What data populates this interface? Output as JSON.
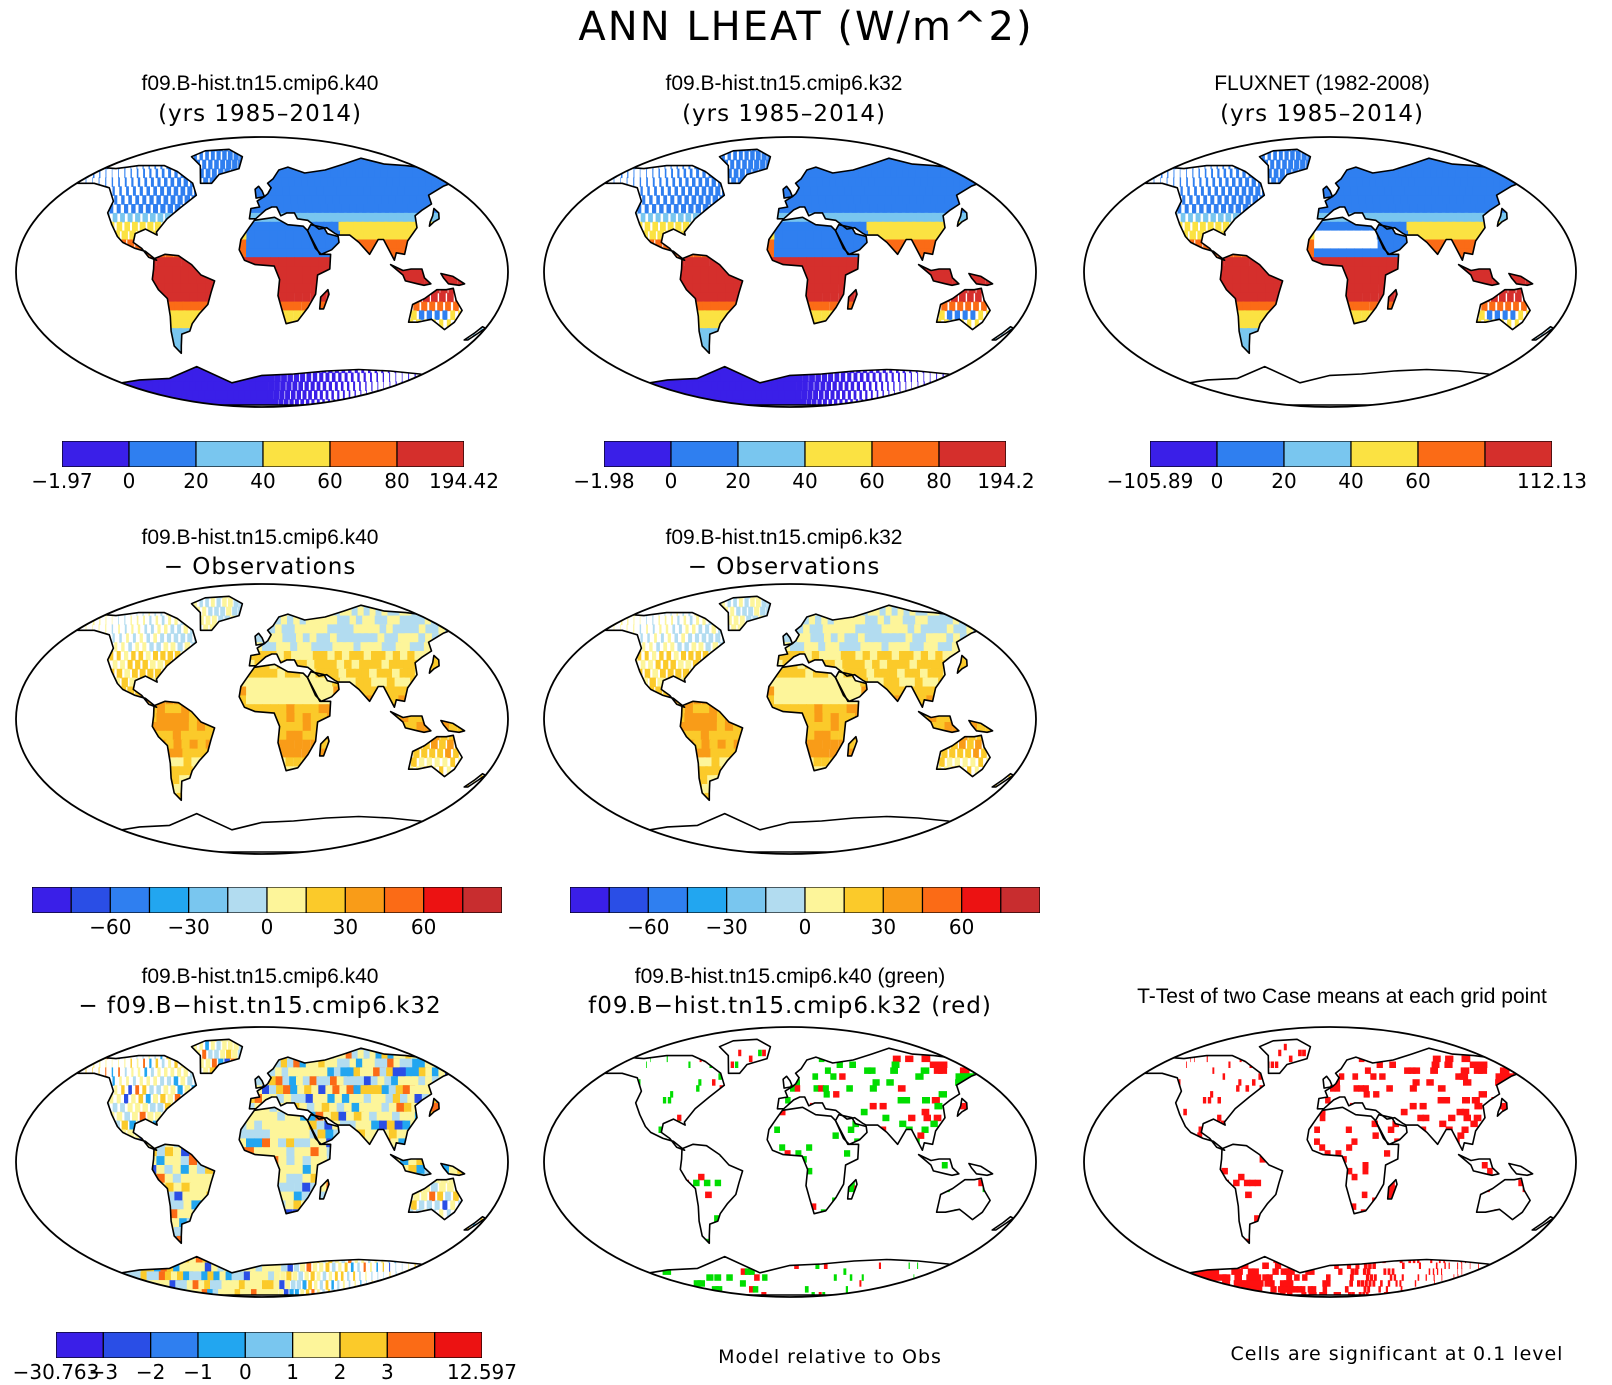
{
  "main_title": "ANN LHEAT (W/m^2)",
  "colors": {
    "abs": [
      "#3a1fe8",
      "#2f7ff0",
      "#79c6ef",
      "#fbe242",
      "#fb6b16",
      "#d52f2c"
    ],
    "diff": [
      "#3a1fe8",
      "#2a4ee6",
      "#2f7ff0",
      "#22a6f0",
      "#79c6ef",
      "#b2dcf0",
      "#fdf59a",
      "#fbca2a",
      "#f99c18",
      "#fb6b16",
      "#ec1212",
      "#c82d2f"
    ],
    "sig_green": "#00dd00",
    "sig_red": "#ff1010"
  },
  "panels": [
    {
      "id": "p1",
      "title": "f09.B-hist.tn15.cmip6.k40",
      "subtitle": "(yrs 1985–2014)",
      "style": "abs",
      "colorbar": {
        "levels": [
          "−1.97",
          "0",
          "20",
          "40",
          "60",
          "80",
          "194.42"
        ]
      }
    },
    {
      "id": "p2",
      "title": "f09.B-hist.tn15.cmip6.k32",
      "subtitle": "(yrs 1985–2014)",
      "style": "abs",
      "colorbar": {
        "levels": [
          "−1.98",
          "0",
          "20",
          "40",
          "60",
          "80",
          "194.2"
        ]
      }
    },
    {
      "id": "p3",
      "title": "FLUXNET (1982-2008)",
      "subtitle": "(yrs 1985–2014)",
      "style": "obs",
      "colorbar": {
        "levels": [
          "−105.89",
          "0",
          "20",
          "40",
          "60",
          "",
          "112.13"
        ]
      }
    },
    {
      "id": "p4",
      "title": "f09.B-hist.tn15.cmip6.k40",
      "subtitle": "− Observations",
      "style": "diff",
      "colorbar": {
        "levels": [
          "",
          "",
          "−60",
          "",
          "−30",
          "",
          "0",
          "",
          "30",
          "",
          "60",
          "",
          ""
        ]
      }
    },
    {
      "id": "p5",
      "title": "f09.B-hist.tn15.cmip6.k32",
      "subtitle": "− Observations",
      "style": "diff",
      "colorbar": {
        "levels": [
          "",
          "",
          "−60",
          "",
          "−30",
          "",
          "0",
          "",
          "30",
          "",
          "60",
          "",
          ""
        ]
      }
    },
    {
      "id": "p7",
      "title": "f09.B-hist.tn15.cmip6.k40",
      "subtitle": "− f09.B−hist.tn15.cmip6.k32",
      "style": "mdiff",
      "colorbar": {
        "levels": [
          "−30.763",
          "−3",
          "−2",
          "−1",
          "0",
          "1",
          "2",
          "3",
          "",
          "12.597"
        ]
      }
    },
    {
      "id": "p8",
      "title": "f09.B-hist.tn15.cmip6.k40 (green)",
      "subtitle": "f09.B−hist.tn15.cmip6.k32 (red)",
      "style": "sig"
    },
    {
      "id": "p9",
      "title": "T-Test of two Case means at each grid point",
      "subtitle": "",
      "style": "ttest"
    }
  ],
  "footnotes": {
    "model_relative": "Model relative to Obs",
    "significance": "Cells are significant at 0.1 level"
  }
}
